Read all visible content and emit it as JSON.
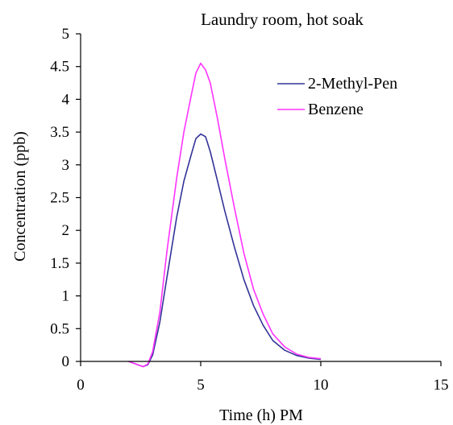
{
  "chart_data": {
    "type": "line",
    "title": "Laundry room, hot soak",
    "xlabel": "Time (h) PM",
    "ylabel": "Concentration (ppb)",
    "xlim": [
      0,
      15
    ],
    "ylim": [
      0,
      5
    ],
    "x_ticks": [
      "0",
      "5",
      "10",
      "15"
    ],
    "y_ticks": [
      "0",
      "0.5",
      "1",
      "1.5",
      "2",
      "2.5",
      "3",
      "3.5",
      "4",
      "4.5",
      "5"
    ],
    "grid": false,
    "legend_position": "top-right",
    "series": [
      {
        "name": "2-Methyl-Pen",
        "color": "#333399",
        "x": [
          2.0,
          2.3,
          2.6,
          2.8,
          3.0,
          3.3,
          3.6,
          4.0,
          4.3,
          4.6,
          4.8,
          5.0,
          5.2,
          5.4,
          5.7,
          6.0,
          6.4,
          6.8,
          7.2,
          7.6,
          8.0,
          8.5,
          9.0,
          9.5,
          10.0
        ],
        "y": [
          0.0,
          -0.04,
          -0.08,
          -0.05,
          0.1,
          0.6,
          1.3,
          2.2,
          2.75,
          3.15,
          3.4,
          3.47,
          3.43,
          3.2,
          2.75,
          2.3,
          1.75,
          1.25,
          0.85,
          0.55,
          0.32,
          0.17,
          0.09,
          0.05,
          0.03
        ]
      },
      {
        "name": "Benzene",
        "color": "#ff33ff",
        "x": [
          2.0,
          2.3,
          2.6,
          2.8,
          3.0,
          3.3,
          3.6,
          4.0,
          4.3,
          4.6,
          4.8,
          5.0,
          5.2,
          5.4,
          5.7,
          6.0,
          6.4,
          6.8,
          7.2,
          7.6,
          8.0,
          8.5,
          9.0,
          9.5,
          10.0
        ],
        "y": [
          0.0,
          -0.04,
          -0.08,
          -0.04,
          0.15,
          0.75,
          1.7,
          2.8,
          3.5,
          4.05,
          4.4,
          4.55,
          4.45,
          4.25,
          3.7,
          3.1,
          2.35,
          1.65,
          1.1,
          0.72,
          0.42,
          0.22,
          0.11,
          0.06,
          0.04
        ]
      }
    ]
  }
}
